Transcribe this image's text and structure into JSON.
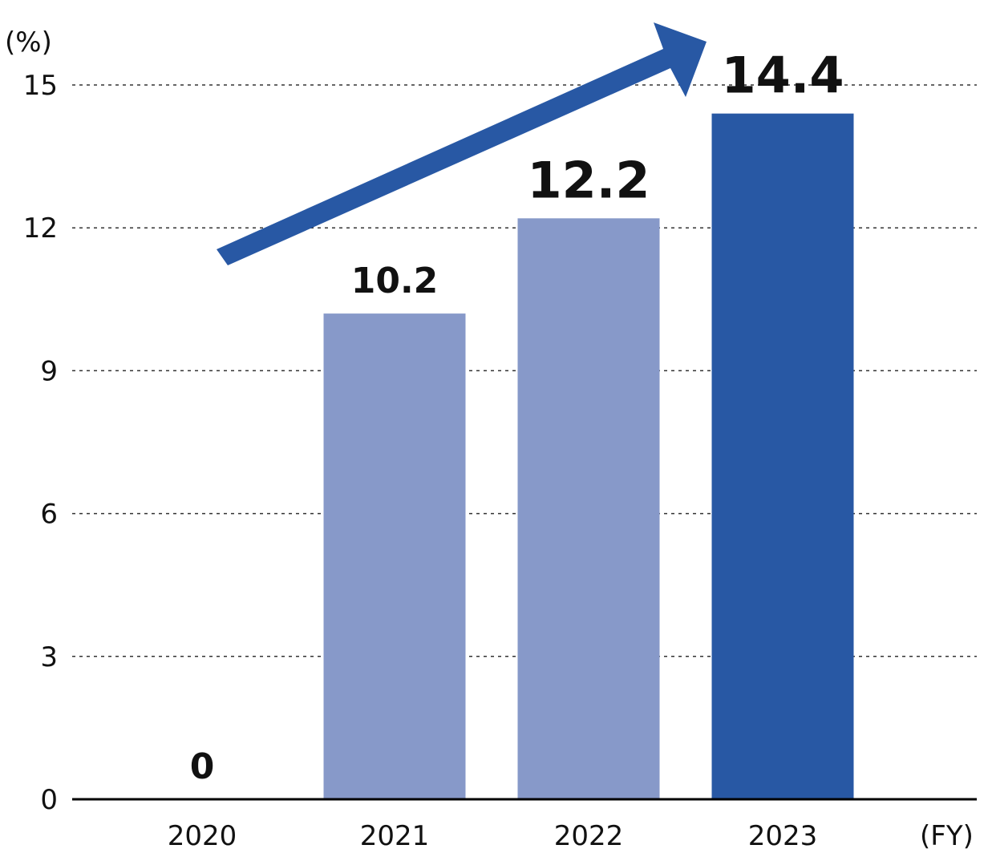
{
  "chart_data": {
    "type": "bar",
    "categories": [
      "2020",
      "2021",
      "2022",
      "2023"
    ],
    "values": [
      0,
      10.2,
      12.2,
      14.4
    ],
    "data_labels": [
      "0",
      "10.2",
      "12.2",
      "14.4"
    ],
    "y_unit": "(%)",
    "x_unit": "(FY)",
    "yticks": [
      "0",
      "3",
      "6",
      "9",
      "12",
      "15"
    ],
    "ylim": [
      0,
      15
    ],
    "grid": "dotted horizontal",
    "trend_arrow": "up",
    "colors": {
      "bar_light": "#8799c9",
      "bar_highlight": "#2858a4",
      "arrow": "#2858a4",
      "axis": "#000000"
    },
    "bar_highlight": [
      false,
      false,
      false,
      true
    ]
  }
}
